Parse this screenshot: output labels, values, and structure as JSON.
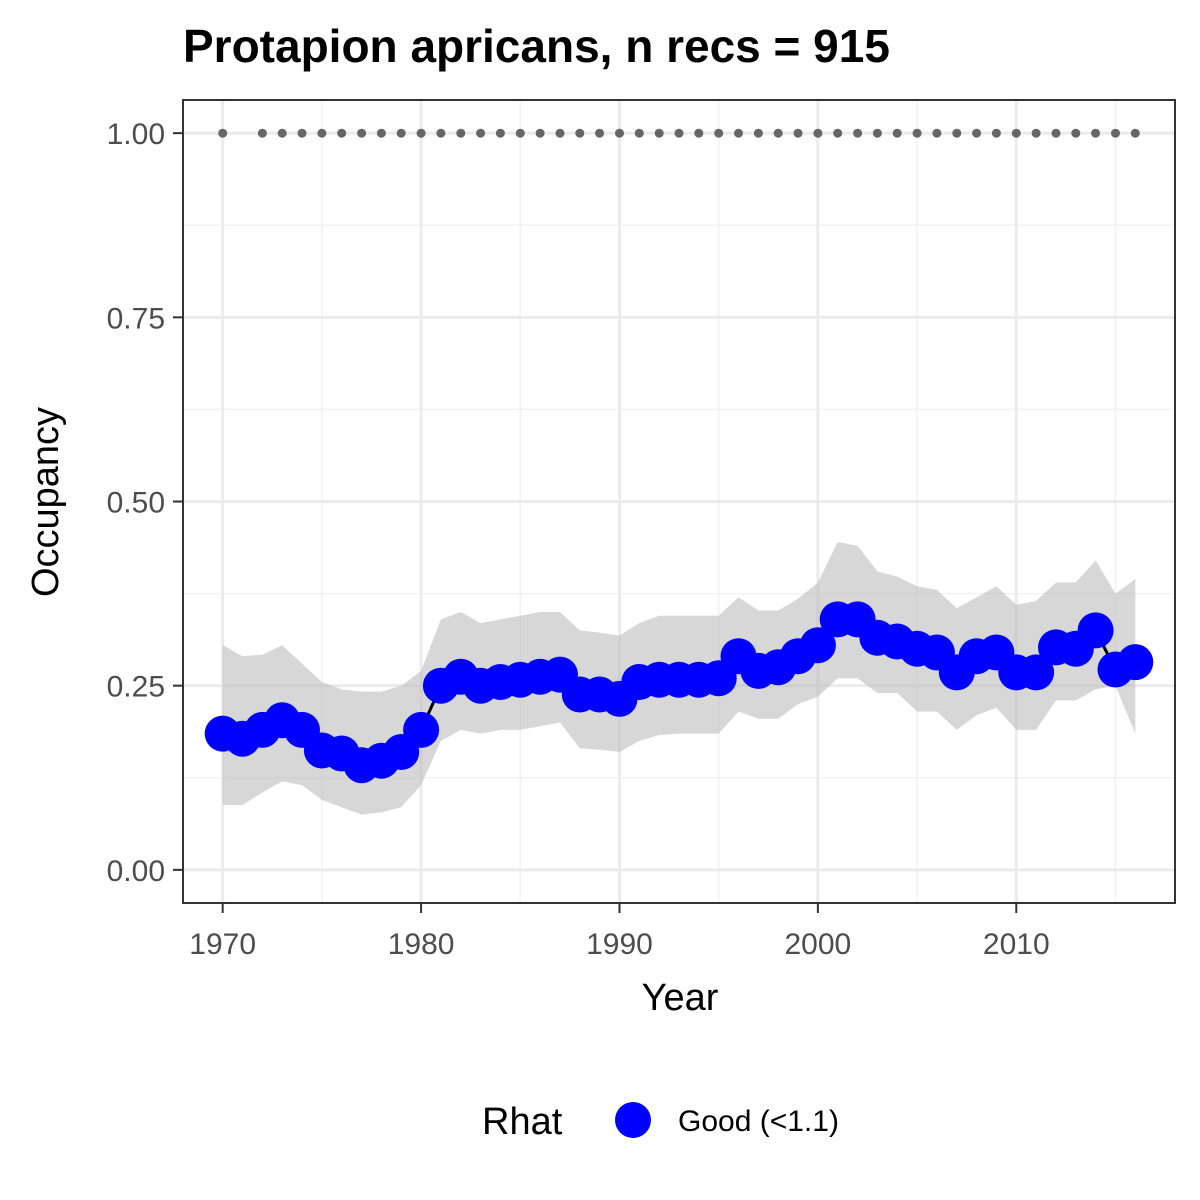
{
  "chart_data": {
    "type": "line",
    "title": "Protapion apricans, n recs = 915",
    "xlabel": "Year",
    "ylabel": "Occupancy",
    "xlim": [
      1968,
      2018
    ],
    "ylim": [
      -0.045,
      1.045
    ],
    "x_ticks": [
      1970,
      1980,
      1990,
      2000,
      2010
    ],
    "y_ticks": [
      0,
      0.25,
      0.5,
      0.75,
      1
    ],
    "y_tick_labels": [
      "0.00",
      "0.25",
      "0.50",
      "0.75",
      "1.00"
    ],
    "grid": true,
    "legend": {
      "title": "Rhat",
      "position": "bottom",
      "entries": [
        {
          "label": "Good (<1.1)",
          "color": "#0000ff"
        }
      ]
    },
    "series": [
      {
        "name": "Good (<1.1)",
        "color": "#0000ff",
        "x": [
          1970,
          1971,
          1972,
          1973,
          1974,
          1975,
          1976,
          1977,
          1978,
          1979,
          1980,
          1981,
          1982,
          1983,
          1984,
          1985,
          1986,
          1987,
          1988,
          1989,
          1990,
          1991,
          1992,
          1993,
          1994,
          1995,
          1996,
          1997,
          1998,
          1999,
          2000,
          2001,
          2002,
          2003,
          2004,
          2005,
          2006,
          2007,
          2008,
          2009,
          2010,
          2011,
          2012,
          2013,
          2014,
          2015,
          2016
        ],
        "y": [
          0.185,
          0.178,
          0.19,
          0.203,
          0.19,
          0.162,
          0.158,
          0.142,
          0.148,
          0.16,
          0.19,
          0.25,
          0.262,
          0.25,
          0.255,
          0.258,
          0.262,
          0.265,
          0.238,
          0.238,
          0.232,
          0.255,
          0.258,
          0.258,
          0.258,
          0.26,
          0.29,
          0.27,
          0.275,
          0.29,
          0.305,
          0.34,
          0.34,
          0.315,
          0.31,
          0.3,
          0.295,
          0.268,
          0.29,
          0.295,
          0.268,
          0.268,
          0.302,
          0.3,
          0.325,
          0.272,
          0.282
        ],
        "lower": [
          0.088,
          0.088,
          0.105,
          0.12,
          0.115,
          0.095,
          0.085,
          0.075,
          0.078,
          0.085,
          0.115,
          0.175,
          0.19,
          0.185,
          0.19,
          0.19,
          0.195,
          0.2,
          0.165,
          0.163,
          0.16,
          0.175,
          0.183,
          0.185,
          0.185,
          0.185,
          0.215,
          0.205,
          0.205,
          0.225,
          0.235,
          0.26,
          0.26,
          0.24,
          0.24,
          0.215,
          0.215,
          0.19,
          0.21,
          0.22,
          0.19,
          0.19,
          0.23,
          0.23,
          0.245,
          0.25,
          0.185
        ],
        "upper": [
          0.305,
          0.29,
          0.292,
          0.305,
          0.28,
          0.255,
          0.245,
          0.242,
          0.242,
          0.25,
          0.27,
          0.34,
          0.35,
          0.335,
          0.34,
          0.345,
          0.35,
          0.35,
          0.325,
          0.322,
          0.318,
          0.335,
          0.345,
          0.345,
          0.345,
          0.345,
          0.37,
          0.352,
          0.352,
          0.368,
          0.39,
          0.445,
          0.44,
          0.405,
          0.398,
          0.385,
          0.38,
          0.355,
          0.37,
          0.385,
          0.36,
          0.365,
          0.39,
          0.39,
          0.42,
          0.375,
          0.395
        ]
      }
    ],
    "detection_dots": {
      "color": "#666666",
      "y": 1,
      "x": [
        1970,
        1972,
        1973,
        1974,
        1975,
        1976,
        1977,
        1978,
        1979,
        1980,
        1981,
        1982,
        1983,
        1984,
        1985,
        1986,
        1987,
        1988,
        1989,
        1990,
        1991,
        1992,
        1993,
        1994,
        1995,
        1996,
        1997,
        1998,
        1999,
        2000,
        2001,
        2002,
        2003,
        2004,
        2005,
        2006,
        2007,
        2008,
        2009,
        2010,
        2011,
        2012,
        2013,
        2014,
        2015,
        2016
      ]
    }
  }
}
